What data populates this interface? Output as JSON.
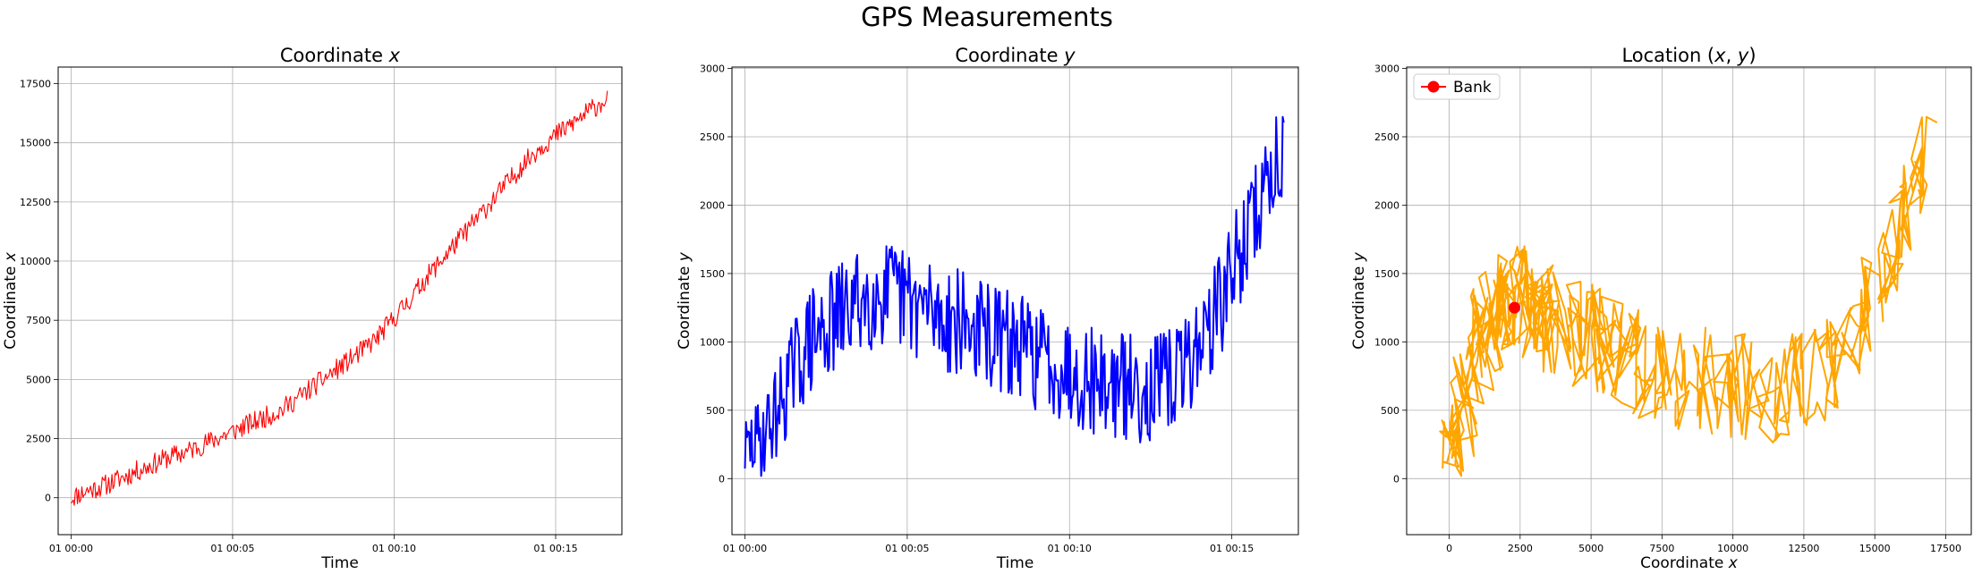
{
  "figure": {
    "title": "GPS Measurements"
  },
  "chart_data": [
    {
      "type": "line",
      "title": "Coordinate x",
      "title_base": "Coordinate ",
      "title_var": "x",
      "xlabel": "Time",
      "ylabel": "Coordinate x",
      "ylabel_base": "Coordinate ",
      "ylabel_var": "x",
      "xlim": [
        -0.4,
        17.05
      ],
      "ylim": [
        -1560,
        18200
      ],
      "xticks": [
        0,
        5,
        10,
        15
      ],
      "xtick_labels": [
        "01 00:00",
        "01 00:05",
        "01 00:10",
        "01 00:15"
      ],
      "yticks": [
        0,
        2500,
        5000,
        7500,
        10000,
        12500,
        15000,
        17500
      ],
      "ytick_labels": [
        "0",
        "2500",
        "5000",
        "7500",
        "10000",
        "12500",
        "15000",
        "17500"
      ],
      "grid": true,
      "series": [
        {
          "color": "#ff0000",
          "x": [
            0,
            0.5,
            1,
            1.5,
            2,
            2.5,
            3,
            3.5,
            4,
            4.5,
            5,
            5.5,
            6,
            6.5,
            7,
            7.5,
            8,
            8.5,
            9,
            9.5,
            10,
            10.5,
            11,
            11.5,
            12,
            12.5,
            13,
            13.5,
            14,
            14.5,
            15,
            15.5,
            16,
            16.5
          ],
          "y": [
            0,
            300,
            500,
            800,
            1100,
            1400,
            1700,
            1900,
            2200,
            2500,
            2800,
            3100,
            3400,
            3700,
            4200,
            4700,
            5200,
            5700,
            6200,
            6800,
            7600,
            8400,
            9300,
            10100,
            10900,
            11700,
            12500,
            13300,
            14100,
            14800,
            15300,
            15800,
            16300,
            16800
          ]
        }
      ]
    },
    {
      "type": "line",
      "title": "Coordinate y",
      "title_base": "Coordinate ",
      "title_var": "y",
      "xlabel": "Time",
      "ylabel": "Coordinate y",
      "ylabel_base": "Coordinate ",
      "ylabel_var": "y",
      "xlim": [
        -0.4,
        17.05
      ],
      "ylim": [
        -410,
        3010
      ],
      "xticks": [
        0,
        5,
        10,
        15
      ],
      "xtick_labels": [
        "01 00:00",
        "01 00:05",
        "01 00:10",
        "01 00:15"
      ],
      "yticks": [
        0,
        500,
        1000,
        1500,
        2000,
        2500,
        3000
      ],
      "ytick_labels": [
        "0",
        "500",
        "1000",
        "1500",
        "2000",
        "2500",
        "3000"
      ],
      "grid": true,
      "series": [
        {
          "color": "#0000ff",
          "x": [
            0,
            0.5,
            1,
            1.5,
            2,
            2.5,
            3,
            3.5,
            4,
            4.5,
            5,
            5.5,
            6,
            6.5,
            7,
            7.5,
            8,
            8.5,
            9,
            9.5,
            10,
            10.5,
            11,
            11.5,
            12,
            12.5,
            13,
            13.5,
            14,
            14.5,
            15,
            15.5,
            16,
            16.5
          ],
          "y": [
            200,
            300,
            500,
            800,
            1000,
            1100,
            1200,
            1300,
            1350,
            1350,
            1300,
            1250,
            1200,
            1150,
            1100,
            1050,
            1000,
            950,
            900,
            850,
            800,
            750,
            700,
            680,
            660,
            650,
            700,
            800,
            1000,
            1200,
            1500,
            1800,
            2100,
            2400
          ],
          "noise": [
            250,
            300,
            350,
            380,
            400,
            400,
            400,
            400,
            400,
            400,
            400,
            400,
            400,
            400,
            400,
            400,
            400,
            400,
            400,
            400,
            400,
            400,
            400,
            400,
            400,
            400,
            400,
            400,
            400,
            400,
            400,
            400,
            400,
            400
          ]
        }
      ]
    },
    {
      "type": "line",
      "title": "Location (x, y)",
      "title_base": "Location (",
      "title_var1": "x",
      "title_sep": ", ",
      "title_var2": "y",
      "title_end": ")",
      "xlabel": "Coordinate x",
      "xlabel_base": "Coordinate ",
      "xlabel_var": "x",
      "ylabel": "Coordinate y",
      "ylabel_base": "Coordinate ",
      "ylabel_var": "y",
      "xlim": [
        -1500,
        18400
      ],
      "ylim": [
        -410,
        3010
      ],
      "xticks": [
        0,
        2500,
        5000,
        7500,
        10000,
        12500,
        15000,
        17500
      ],
      "xtick_labels": [
        "0",
        "2500",
        "5000",
        "7500",
        "10000",
        "12500",
        "15000",
        "17500"
      ],
      "yticks": [
        0,
        500,
        1000,
        1500,
        2000,
        2500,
        3000
      ],
      "ytick_labels": [
        "0",
        "500",
        "1000",
        "1500",
        "2000",
        "2500",
        "3000"
      ],
      "grid": true,
      "legend": {
        "position": "top-left",
        "entries": [
          {
            "label": "Bank",
            "color": "#ff0000"
          }
        ]
      },
      "series": [
        {
          "color": "#ffa500",
          "x": [
            0,
            300,
            500,
            800,
            1100,
            1400,
            1700,
            1900,
            2200,
            2500,
            2800,
            3100,
            3400,
            3700,
            4200,
            4700,
            5200,
            5700,
            6200,
            6800,
            7600,
            8400,
            9300,
            10100,
            10900,
            11700,
            12500,
            13300,
            14100,
            14800,
            15300,
            15800,
            16300,
            16800
          ],
          "y": [
            200,
            300,
            500,
            800,
            1000,
            1100,
            1200,
            1300,
            1350,
            1350,
            1300,
            1250,
            1200,
            1150,
            1100,
            1050,
            1000,
            950,
            900,
            850,
            800,
            750,
            700,
            680,
            660,
            650,
            700,
            800,
            1000,
            1200,
            1500,
            1800,
            2100,
            2400
          ]
        },
        {
          "name": "Bank",
          "color": "#ff0000",
          "type": "scatter",
          "x": [
            2300
          ],
          "y": [
            1250
          ]
        }
      ]
    }
  ]
}
